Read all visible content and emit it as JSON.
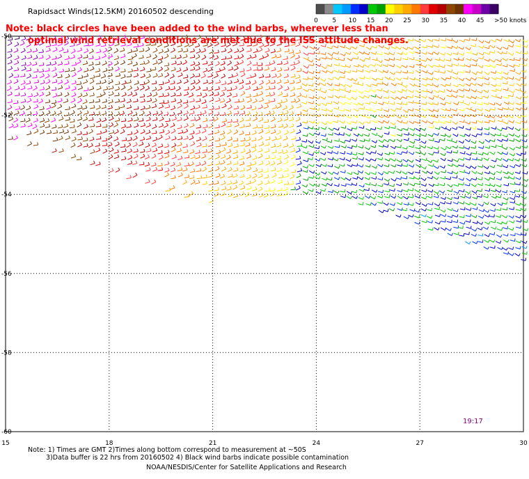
{
  "title": "Rapidsact Winds(12.5KM) 20160502 descending",
  "note_line1": "Note: black circles have been added to the wind barbs, wherever less than",
  "note_line2": "optimal wind retrieval conditions are met due to the ISS attitude changes.",
  "colorbar": {
    "labels": [
      "0",
      "5",
      "10",
      "15",
      "20",
      "25",
      "30",
      "35",
      "40",
      "45",
      ">50 knots"
    ],
    "colors": [
      "#4d4d4d",
      "#8c8c8c",
      "#00c8ff",
      "#009bff",
      "#0030ff",
      "#0000c8",
      "#00c800",
      "#00a000",
      "#ffff00",
      "#ffd000",
      "#ffaa00",
      "#ff7800",
      "#ff3c3c",
      "#e00000",
      "#b40000",
      "#8c4600",
      "#6e3200",
      "#ff00ff",
      "#c800c8",
      "#6e00aa",
      "#3c0064"
    ]
  },
  "map": {
    "lon_labels": [
      "15",
      "18",
      "21",
      "24",
      "27",
      "30"
    ],
    "lat_labels": [
      "-50",
      "-52",
      "-54",
      "-56",
      "-58",
      "-60"
    ],
    "lon_range": [
      15,
      30
    ],
    "lat_range": [
      -60,
      -50
    ]
  },
  "time_label": "19:17",
  "footnote_line1": "Note: 1) Times are GMT 2)Times along bottom correspond to measurement at ~50S",
  "footnote_line2": "3)Data buffer is 22 hrs from 20160502 4) Black wind barbs indicate possible contamination",
  "credit": "NOAA/NESDIS/Center for Satellite Applications and Research"
}
